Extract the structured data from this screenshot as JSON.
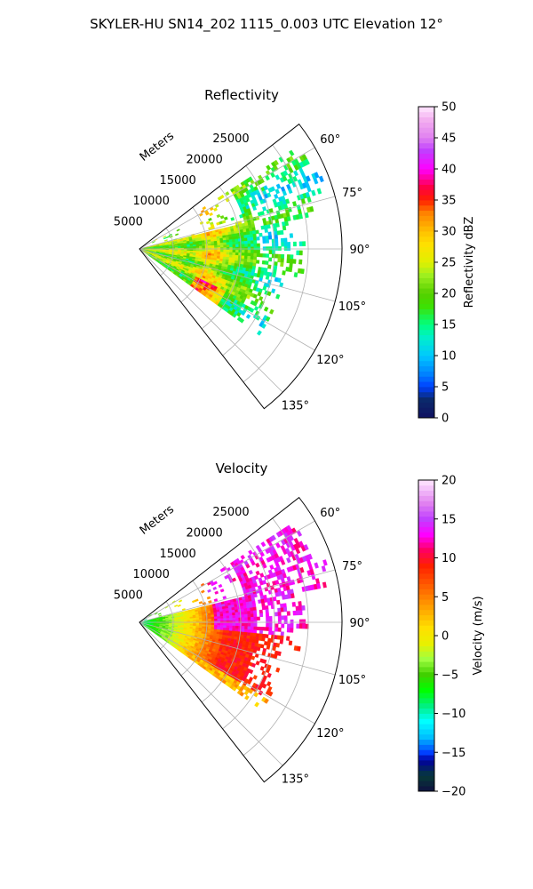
{
  "figure": {
    "title": "SKYLER-HU  SN14_202  1115_0.003 UTC Elevation 12°"
  },
  "chart_data": [
    {
      "type": "heatmap",
      "projection": "polar sector (PPI)",
      "title": "Reflectivity",
      "radial_axis_label": "Meters",
      "radial_range": [
        0,
        30000
      ],
      "radial_ticks": [
        5000,
        10000,
        15000,
        20000,
        25000
      ],
      "radial_tick_labels": [
        "5000",
        "10000",
        "15000",
        "20000",
        "25000"
      ],
      "azimuth_range_deg": [
        52,
        142
      ],
      "azimuth_ticks_deg": [
        60,
        75,
        90,
        105,
        120,
        135
      ],
      "azimuth_tick_labels": [
        "60°",
        "75°",
        "90°",
        "105°",
        "120°",
        "135°"
      ],
      "grid": true,
      "colorbar": {
        "label": "Reflectivity dBZ",
        "min": 0,
        "max": 50,
        "ticks": [
          0,
          5,
          10,
          15,
          20,
          25,
          30,
          35,
          40,
          45,
          50
        ],
        "tick_labels": [
          "0",
          "5",
          "10",
          "15",
          "20",
          "25",
          "30",
          "35",
          "40",
          "45",
          "50"
        ]
      },
      "echo_extent_m": {
        "near_beams": 22000,
        "far_beams": 29000
      }
    },
    {
      "type": "heatmap",
      "projection": "polar sector (PPI)",
      "title": "Velocity",
      "radial_axis_label": "Meters",
      "radial_range": [
        0,
        30000
      ],
      "radial_ticks": [
        5000,
        10000,
        15000,
        20000,
        25000
      ],
      "radial_tick_labels": [
        "5000",
        "10000",
        "15000",
        "20000",
        "25000"
      ],
      "azimuth_range_deg": [
        52,
        142
      ],
      "azimuth_ticks_deg": [
        60,
        75,
        90,
        105,
        120,
        135
      ],
      "azimuth_tick_labels": [
        "60°",
        "75°",
        "90°",
        "105°",
        "120°",
        "135°"
      ],
      "grid": true,
      "colorbar": {
        "label": "Velocity (m/s)",
        "min": -20,
        "max": 20,
        "ticks": [
          -20,
          -15,
          -10,
          -5,
          0,
          5,
          10,
          15,
          20
        ],
        "tick_labels": [
          "−20",
          "−15",
          "−10",
          "−5",
          "0",
          "5",
          "10",
          "15",
          "20"
        ]
      },
      "echo_extent_m": {
        "near_beams": 22000,
        "far_beams": 29000
      }
    }
  ]
}
